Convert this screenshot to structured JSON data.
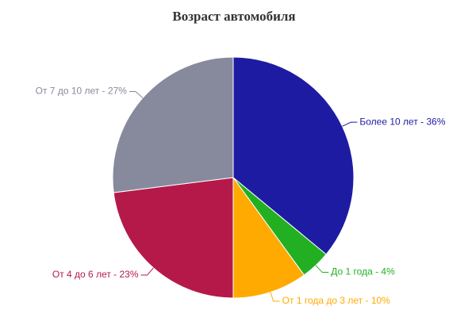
{
  "chart_data": {
    "type": "pie",
    "title": "Возраст автомобиля",
    "values": [
      36,
      4,
      10,
      23,
      27
    ],
    "value_labels": [
      "Более 10 лет - 36%",
      "До 1 года - 4%",
      "От 1 года до 3 лет - 10%",
      "От 4 до 6 лет - 23%",
      "От 7 до 10 лет - 27%"
    ],
    "colors": [
      "#1e1ba3",
      "#22b022",
      "#ffaa00",
      "#b5194a",
      "#878a9c"
    ]
  }
}
